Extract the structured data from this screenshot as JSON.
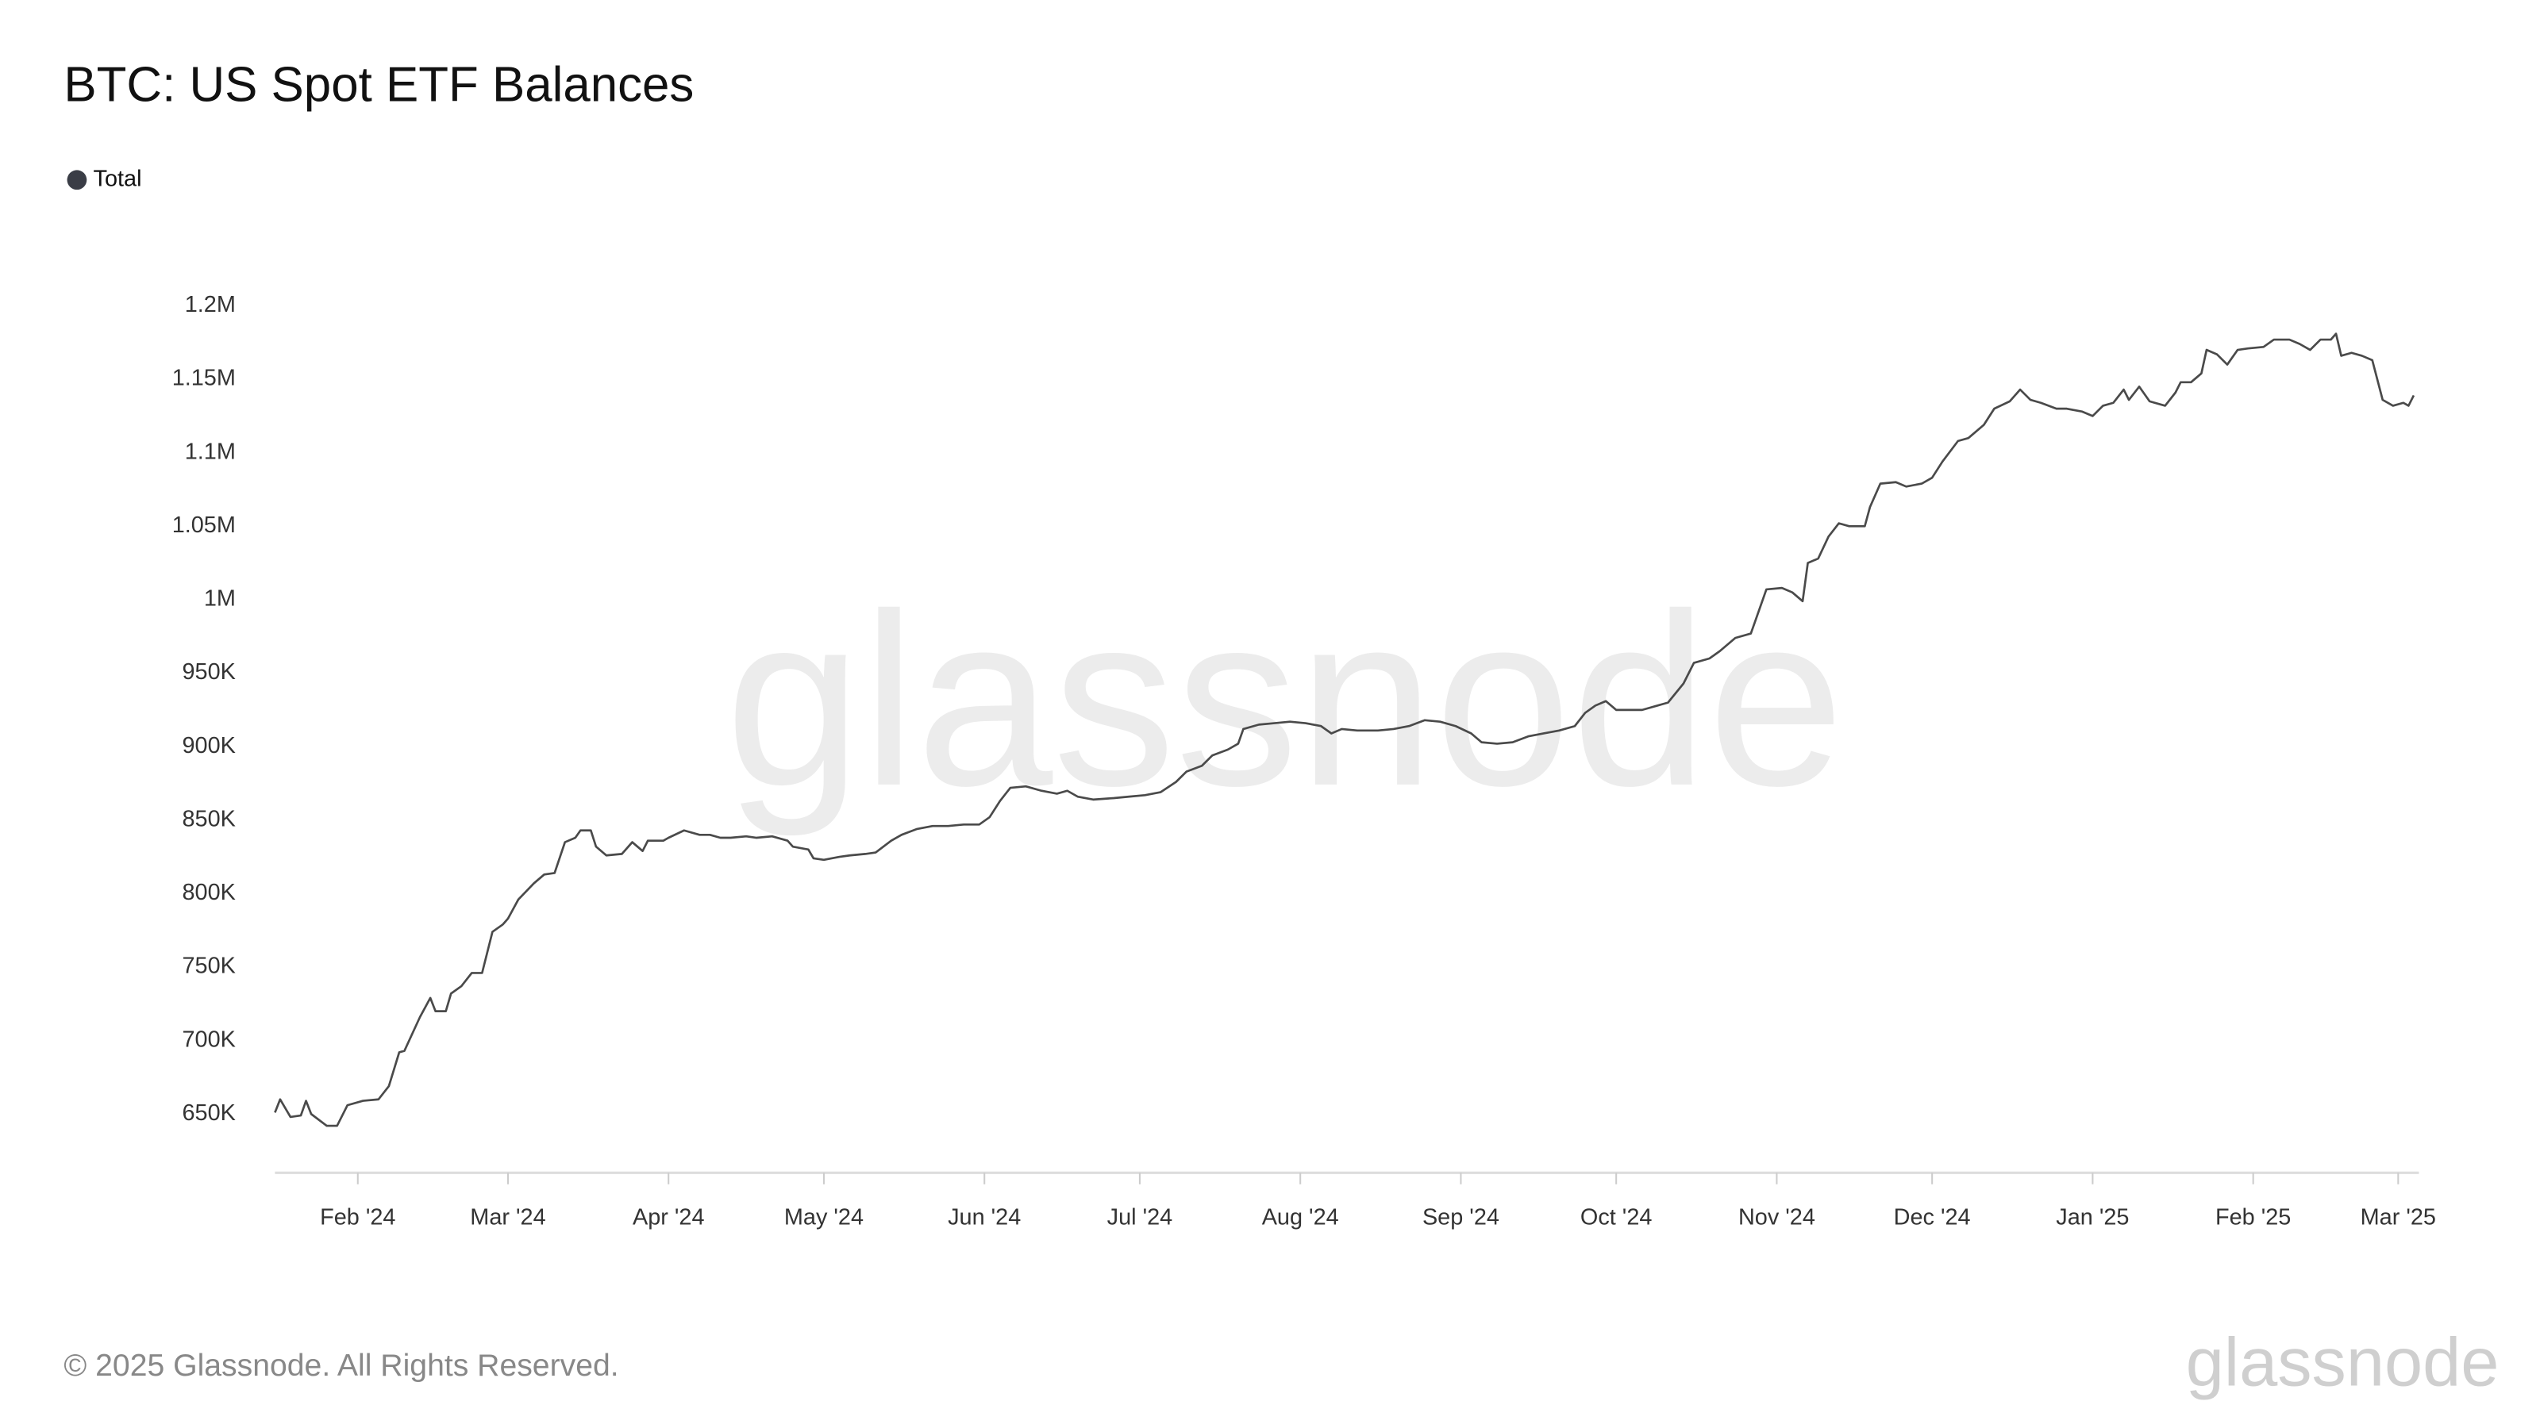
{
  "chart_data": {
    "type": "line",
    "title": "BTC: US Spot ETF Balances",
    "footer": "© 2025 Glassnode. All Rights Reserved.",
    "watermark": "glassnode",
    "logo": "glassnode",
    "legend": "top-left",
    "x": [
      15,
      16,
      18,
      20,
      21,
      22,
      25,
      27,
      29,
      32,
      35,
      37,
      39,
      40,
      43,
      45,
      46,
      48,
      49,
      51,
      53,
      55,
      57,
      59,
      60,
      62,
      65,
      67,
      69,
      71,
      73,
      74,
      76,
      77,
      79,
      82,
      84,
      86,
      87,
      90,
      91,
      94,
      97,
      99,
      101,
      103,
      106,
      108,
      111,
      114,
      115,
      118,
      119,
      121,
      124,
      126,
      129,
      131,
      134,
      136,
      139,
      142,
      145,
      148,
      151,
      153,
      155,
      157,
      160,
      163,
      166,
      168,
      170,
      173,
      177,
      180,
      183,
      186,
      189,
      191,
      194,
      196,
      199,
      201,
      202,
      205,
      208,
      211,
      214,
      217,
      219,
      221,
      224,
      228,
      231,
      234,
      237,
      240,
      243,
      246,
      248,
      251,
      254,
      257,
      260,
      263,
      266,
      268,
      270,
      272,
      274,
      277,
      279,
      282,
      284,
      287,
      289,
      292,
      294,
      297,
      300,
      301,
      303,
      306,
      308,
      310,
      311,
      313,
      315,
      317,
      319,
      322,
      323,
      325,
      328,
      330,
      333,
      335,
      337,
      340,
      342,
      345,
      347,
      350,
      352,
      354,
      356,
      359,
      361,
      364,
      366,
      368,
      370,
      372,
      373,
      375,
      377,
      380,
      382,
      383,
      385,
      387,
      388,
      390,
      392,
      394,
      396,
      399,
      401,
      404,
      406,
      408,
      410,
      412,
      413,
      414,
      416,
      418,
      420,
      422,
      424,
      426,
      427,
      428
    ],
    "series": [
      {
        "name": "Total",
        "color": "#4a4a4a",
        "values": [
          651000,
          660000,
          648000,
          649000,
          659000,
          650000,
          642000,
          642000,
          656000,
          659000,
          660000,
          669000,
          692000,
          693000,
          716000,
          729000,
          720000,
          720000,
          732000,
          737000,
          746000,
          746000,
          774000,
          779000,
          783000,
          796000,
          807000,
          813000,
          814000,
          835000,
          838000,
          843000,
          843000,
          832000,
          826000,
          827000,
          835000,
          829000,
          836000,
          836000,
          838000,
          843000,
          840000,
          840000,
          838000,
          838000,
          839000,
          838000,
          839000,
          836000,
          832000,
          830000,
          824000,
          823000,
          825000,
          826000,
          827000,
          828000,
          836000,
          840000,
          844000,
          846000,
          846000,
          847000,
          847000,
          852000,
          863000,
          872000,
          873000,
          870000,
          868000,
          870000,
          866000,
          864000,
          865000,
          866000,
          867000,
          869000,
          876000,
          883000,
          887000,
          894000,
          898000,
          902000,
          912000,
          915000,
          916000,
          917000,
          916000,
          914000,
          909000,
          912000,
          911000,
          911000,
          912000,
          914000,
          918000,
          917000,
          914000,
          909000,
          903000,
          902000,
          903000,
          907000,
          909000,
          911000,
          914000,
          923000,
          928000,
          931000,
          925000,
          925000,
          925000,
          928000,
          930000,
          943000,
          957000,
          960000,
          965000,
          974000,
          977000,
          987000,
          1007000,
          1008000,
          1005000,
          999000,
          1025000,
          1028000,
          1043000,
          1052000,
          1050000,
          1050000,
          1063000,
          1079000,
          1080000,
          1077000,
          1079000,
          1083000,
          1094000,
          1108000,
          1110000,
          1119000,
          1130000,
          1135000,
          1143000,
          1136000,
          1134000,
          1130000,
          1130000,
          1128000,
          1125000,
          1132000,
          1134000,
          1143000,
          1136000,
          1145000,
          1135000,
          1132000,
          1141000,
          1148000,
          1148000,
          1154000,
          1170000,
          1167000,
          1160000,
          1170000,
          1171000,
          1172000,
          1177000,
          1177000,
          1174000,
          1170000,
          1177000,
          1177000,
          1181000,
          1166000,
          1168000,
          1166000,
          1163000,
          1136000,
          1132000,
          1134000,
          1132000,
          1139000
        ]
      }
    ],
    "xlim": [
      15,
      429
    ],
    "xticks": [
      {
        "value": 31,
        "label": "Feb '24"
      },
      {
        "value": 60,
        "label": "Mar '24"
      },
      {
        "value": 91,
        "label": "Apr '24"
      },
      {
        "value": 121,
        "label": "May '24"
      },
      {
        "value": 152,
        "label": "Jun '24"
      },
      {
        "value": 182,
        "label": "Jul '24"
      },
      {
        "value": 213,
        "label": "Aug '24"
      },
      {
        "value": 244,
        "label": "Sep '24"
      },
      {
        "value": 274,
        "label": "Oct '24"
      },
      {
        "value": 305,
        "label": "Nov '24"
      },
      {
        "value": 335,
        "label": "Dec '24"
      },
      {
        "value": 366,
        "label": "Jan '25"
      },
      {
        "value": 397,
        "label": "Feb '25"
      },
      {
        "value": 425,
        "label": "Mar '25"
      }
    ],
    "ylim": [
      610000,
      1230000
    ],
    "yticks": [
      {
        "value": 650000,
        "label": "650K"
      },
      {
        "value": 700000,
        "label": "700K"
      },
      {
        "value": 750000,
        "label": "750K"
      },
      {
        "value": 800000,
        "label": "800K"
      },
      {
        "value": 850000,
        "label": "850K"
      },
      {
        "value": 900000,
        "label": "900K"
      },
      {
        "value": 950000,
        "label": "950K"
      },
      {
        "value": 1000000,
        "label": "1M"
      },
      {
        "value": 1050000,
        "label": "1.05M"
      },
      {
        "value": 1100000,
        "label": "1.1M"
      },
      {
        "value": 1150000,
        "label": "1.15M"
      },
      {
        "value": 1200000,
        "label": "1.2M"
      }
    ],
    "grid": false
  }
}
